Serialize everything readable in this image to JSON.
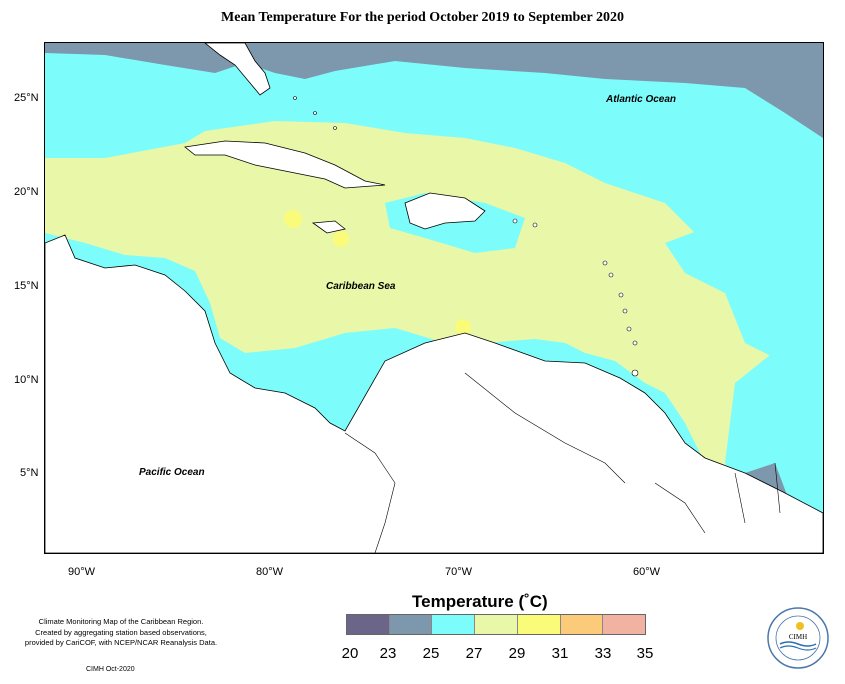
{
  "title": "Mean Temperature For the period October 2019 to September 2020",
  "axes": {
    "lat_labels": [
      "25°N",
      "20°N",
      "15°N",
      "10°N",
      "5°N"
    ],
    "lon_labels": [
      "90°W",
      "80°W",
      "70°W",
      "60°W"
    ]
  },
  "map_labels": {
    "atlantic": "Atlantic Ocean",
    "caribbean": "Caribbean Sea",
    "pacific": "Pacific Ocean"
  },
  "legend": {
    "title": "Temperature (˚C)",
    "ticks": [
      "20",
      "23",
      "25",
      "27",
      "29",
      "31",
      "33",
      "35"
    ],
    "colors": [
      "#6b6689",
      "#7d97ad",
      "#7dfcfc",
      "#e8f7a8",
      "#fbfb7a",
      "#fbcb7a",
      "#f2b2a2"
    ]
  },
  "credits": {
    "line1": "Climate Monitoring Map of the Caribbean Region.",
    "line2": "Created by aggregating station based observations,",
    "line3": "provided by CariCOF, with NCEP/NCAR Reanalysis Data.",
    "stamp": "CIMH Oct-2020"
  },
  "logo": {
    "text": "CIMH"
  }
}
